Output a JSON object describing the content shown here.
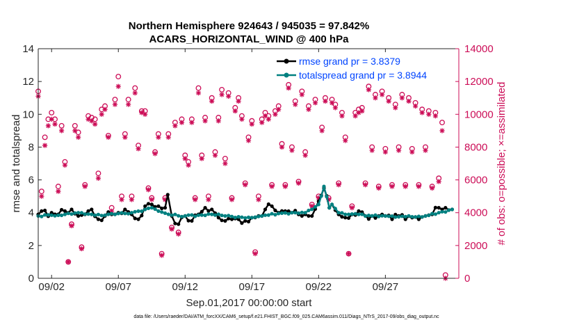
{
  "chart_data": {
    "type": "line",
    "title_line1": "Northern Hemisphere 924643 / 945035 = 97.842%",
    "title_line2": "ACARS_HORIZONTAL_WIND @ 400 hPa",
    "xlabel": "Sep.01,2017 00:00:00 start",
    "ylabel_left": "rmse and totalspread",
    "ylabel_right": "# of obs: o=possible; ×=assimilated",
    "footer": "data file: /Users/raeder/DAI/ATM_forcXX/CAM6_setup/f.e21.FHIST_BGC.f09_025.CAM6assim.011/Diags_NTrS_2017-09/obs_diag_output.nc",
    "xlim": [
      1,
      32.5
    ],
    "ylim_left": [
      0,
      14
    ],
    "ylim_right": [
      0,
      14000
    ],
    "x_ticks": [
      2,
      7,
      12,
      17,
      22,
      27
    ],
    "x_tick_labels": [
      "09/02",
      "09/07",
      "09/12",
      "09/17",
      "09/22",
      "09/27"
    ],
    "y_ticks_left": [
      0,
      2,
      4,
      6,
      8,
      10,
      12,
      14
    ],
    "y_tick_labels_left": [
      "0",
      "2",
      "4",
      "6",
      "8",
      "10",
      "12",
      "14"
    ],
    "y_ticks_right": [
      0,
      2000,
      4000,
      6000,
      8000,
      10000,
      12000,
      14000
    ],
    "y_tick_labels_right": [
      "0",
      "2000",
      "4000",
      "6000",
      "8000",
      "10000",
      "12000",
      "14000"
    ],
    "legend": [
      {
        "name": "rmse grand pr = 3.8379",
        "color": "#000000"
      },
      {
        "name": "totalspread grand pr = 3.8944",
        "color": "#008080"
      }
    ],
    "series": [
      {
        "name": "rmse",
        "axis": "left",
        "color": "#000000",
        "anchors": [
          [
            1,
            3.9
          ],
          [
            2,
            4.0
          ],
          [
            2.5,
            3.9
          ],
          [
            3,
            4.1
          ],
          [
            3.5,
            4.2
          ],
          [
            4,
            3.8
          ],
          [
            4.5,
            3.9
          ],
          [
            5,
            4.2
          ],
          [
            5.5,
            3.6
          ],
          [
            6,
            3.8
          ],
          [
            6.5,
            3.9
          ],
          [
            7,
            4.0
          ],
          [
            7.5,
            4.2
          ],
          [
            8,
            3.9
          ],
          [
            8.5,
            3.6
          ],
          [
            9,
            4.4
          ],
          [
            9.5,
            4.5
          ],
          [
            10,
            4.4
          ],
          [
            10.5,
            4.3
          ],
          [
            10.7,
            5.1
          ],
          [
            11,
            3.8
          ],
          [
            11.5,
            3.3
          ],
          [
            12,
            3.8
          ],
          [
            12.5,
            3.5
          ],
          [
            13,
            3.9
          ],
          [
            13.5,
            4.3
          ],
          [
            14,
            4.2
          ],
          [
            14.5,
            3.7
          ],
          [
            15,
            3.5
          ],
          [
            15.5,
            3.6
          ],
          [
            16,
            3.6
          ],
          [
            16.5,
            3.5
          ],
          [
            17,
            3.7
          ],
          [
            17.5,
            3.8
          ],
          [
            18,
            4.2
          ],
          [
            18.5,
            4.4
          ],
          [
            19,
            4.0
          ],
          [
            19.5,
            4.1
          ],
          [
            20,
            4.0
          ],
          [
            20.5,
            3.9
          ],
          [
            21,
            3.9
          ],
          [
            21.5,
            3.8
          ],
          [
            22,
            4.7
          ],
          [
            22.4,
            5.5
          ],
          [
            22.8,
            4.3
          ],
          [
            23,
            4.5
          ],
          [
            23.5,
            3.9
          ],
          [
            24,
            3.7
          ],
          [
            24.5,
            3.9
          ],
          [
            25,
            4.1
          ],
          [
            25.5,
            3.8
          ],
          [
            26,
            3.8
          ],
          [
            26.5,
            3.8
          ],
          [
            27,
            3.8
          ],
          [
            27.5,
            3.6
          ],
          [
            28,
            3.8
          ],
          [
            28.5,
            3.6
          ],
          [
            29,
            3.7
          ],
          [
            29.5,
            3.6
          ],
          [
            30,
            3.8
          ],
          [
            30.5,
            3.9
          ],
          [
            31,
            4.3
          ],
          [
            31.5,
            4.3
          ],
          [
            32,
            4.2
          ]
        ],
        "wiggle": 0.22
      },
      {
        "name": "totalspread",
        "axis": "left",
        "color": "#008080",
        "anchors": [
          [
            1,
            3.8
          ],
          [
            2,
            3.85
          ],
          [
            3,
            3.9
          ],
          [
            4,
            4.0
          ],
          [
            5,
            3.9
          ],
          [
            6,
            3.85
          ],
          [
            7,
            3.95
          ],
          [
            8,
            4.0
          ],
          [
            9,
            4.2
          ],
          [
            9.5,
            4.3
          ],
          [
            10,
            4.1
          ],
          [
            11,
            3.85
          ],
          [
            12,
            3.8
          ],
          [
            13,
            3.85
          ],
          [
            14,
            3.9
          ],
          [
            15,
            3.8
          ],
          [
            16,
            3.75
          ],
          [
            17,
            3.7
          ],
          [
            18,
            3.85
          ],
          [
            19,
            3.95
          ],
          [
            20,
            4.0
          ],
          [
            21,
            4.0
          ],
          [
            22,
            4.5
          ],
          [
            22.4,
            5.6
          ],
          [
            22.8,
            4.3
          ],
          [
            23,
            4.5
          ],
          [
            23.5,
            4.0
          ],
          [
            24,
            3.9
          ],
          [
            25,
            3.9
          ],
          [
            26,
            3.8
          ],
          [
            27,
            3.8
          ],
          [
            28,
            3.75
          ],
          [
            29,
            3.75
          ],
          [
            30,
            3.8
          ],
          [
            31,
            4.0
          ],
          [
            32,
            4.2
          ]
        ],
        "wiggle": 0.06
      }
    ],
    "obs_possible": [
      [
        1,
        11400
      ],
      [
        1.25,
        5300
      ],
      [
        1.5,
        8600
      ],
      [
        1.75,
        9700
      ],
      [
        2,
        10100
      ],
      [
        2.25,
        9700
      ],
      [
        2.5,
        5600
      ],
      [
        2.75,
        9300
      ],
      [
        3,
        7100
      ],
      [
        3.25,
        1000
      ],
      [
        3.5,
        3300
      ],
      [
        3.75,
        9300
      ],
      [
        4,
        8900
      ],
      [
        4.25,
        1900
      ],
      [
        4.5,
        5700
      ],
      [
        4.75,
        9900
      ],
      [
        5,
        9800
      ],
      [
        5.25,
        9700
      ],
      [
        5.5,
        6400
      ],
      [
        5.75,
        10300
      ],
      [
        6,
        10500
      ],
      [
        6.25,
        8700
      ],
      [
        6.5,
        4300
      ],
      [
        6.75,
        10900
      ],
      [
        7,
        12300
      ],
      [
        7.25,
        5000
      ],
      [
        7.5,
        8800
      ],
      [
        7.75,
        10900
      ],
      [
        8,
        5000
      ],
      [
        8.25,
        11600
      ],
      [
        8.5,
        8100
      ],
      [
        8.75,
        10200
      ],
      [
        9,
        10200
      ],
      [
        9.25,
        5500
      ],
      [
        9.5,
        4900
      ],
      [
        9.75,
        7700
      ],
      [
        10,
        8800
      ],
      [
        10.25,
        1500
      ],
      [
        10.5,
        4900
      ],
      [
        10.75,
        8800
      ],
      [
        11,
        3100
      ],
      [
        11.25,
        9500
      ],
      [
        11.5,
        2800
      ],
      [
        11.75,
        9700
      ],
      [
        12,
        7500
      ],
      [
        12.25,
        7100
      ],
      [
        12.5,
        9700
      ],
      [
        12.75,
        4900
      ],
      [
        13,
        11600
      ],
      [
        13.25,
        7500
      ],
      [
        13.5,
        9800
      ],
      [
        13.75,
        5000
      ],
      [
        14,
        11000
      ],
      [
        14.25,
        7700
      ],
      [
        14.5,
        9800
      ],
      [
        14.75,
        11500
      ],
      [
        15,
        7300
      ],
      [
        15.25,
        11300
      ],
      [
        15.5,
        4900
      ],
      [
        15.75,
        10400
      ],
      [
        16,
        11000
      ],
      [
        16.25,
        9900
      ],
      [
        16.5,
        5800
      ],
      [
        16.75,
        8600
      ],
      [
        17,
        9600
      ],
      [
        17.25,
        1600
      ],
      [
        17.5,
        5000
      ],
      [
        17.75,
        9700
      ],
      [
        18,
        10100
      ],
      [
        18.25,
        9900
      ],
      [
        18.5,
        5700
      ],
      [
        18.75,
        10200
      ],
      [
        19,
        10500
      ],
      [
        19.25,
        8200
      ],
      [
        19.5,
        5700
      ],
      [
        19.75,
        11800
      ],
      [
        20,
        8000
      ],
      [
        20.25,
        10800
      ],
      [
        20.5,
        5900
      ],
      [
        20.75,
        11400
      ],
      [
        21,
        7700
      ],
      [
        21.25,
        10500
      ],
      [
        21.5,
        4500
      ],
      [
        21.75,
        10900
      ],
      [
        22,
        5000
      ],
      [
        22.25,
        9200
      ],
      [
        22.5,
        11000
      ],
      [
        22.75,
        4900
      ],
      [
        23,
        10900
      ],
      [
        23.25,
        10600
      ],
      [
        23.5,
        5800
      ],
      [
        23.75,
        10100
      ],
      [
        24,
        8600
      ],
      [
        24.25,
        1500
      ],
      [
        24.5,
        4400
      ],
      [
        24.75,
        10100
      ],
      [
        25,
        10300
      ],
      [
        25.25,
        10400
      ],
      [
        25.5,
        5800
      ],
      [
        25.75,
        11700
      ],
      [
        26,
        8000
      ],
      [
        26.25,
        11200
      ],
      [
        26.5,
        5600
      ],
      [
        26.75,
        11400
      ],
      [
        27,
        7900
      ],
      [
        27.25,
        11000
      ],
      [
        27.5,
        5700
      ],
      [
        27.75,
        10600
      ],
      [
        28,
        8000
      ],
      [
        28.25,
        11200
      ],
      [
        28.5,
        5700
      ],
      [
        28.75,
        11000
      ],
      [
        29,
        7900
      ],
      [
        29.25,
        10700
      ],
      [
        29.5,
        5700
      ],
      [
        29.75,
        10300
      ],
      [
        30,
        8000
      ],
      [
        30.25,
        10200
      ],
      [
        30.5,
        5600
      ],
      [
        30.75,
        10100
      ],
      [
        31,
        6100
      ],
      [
        31.25,
        9500
      ],
      [
        31.5,
        200
      ]
    ],
    "obs_assimilated": [
      [
        1,
        11100
      ],
      [
        1.25,
        5000
      ],
      [
        1.5,
        8100
      ],
      [
        1.75,
        9300
      ],
      [
        2,
        9700
      ],
      [
        2.25,
        9400
      ],
      [
        2.5,
        5300
      ],
      [
        2.75,
        9000
      ],
      [
        3,
        6900
      ],
      [
        3.25,
        1000
      ],
      [
        3.5,
        3200
      ],
      [
        3.75,
        9000
      ],
      [
        4,
        8600
      ],
      [
        4.25,
        1800
      ],
      [
        4.5,
        5600
      ],
      [
        4.75,
        9700
      ],
      [
        5,
        9600
      ],
      [
        5.25,
        9400
      ],
      [
        5.5,
        6100
      ],
      [
        5.75,
        10000
      ],
      [
        6,
        10300
      ],
      [
        6.25,
        8600
      ],
      [
        6.5,
        4100
      ],
      [
        6.75,
        10600
      ],
      [
        7,
        11700
      ],
      [
        7.25,
        4800
      ],
      [
        7.5,
        8600
      ],
      [
        7.75,
        10600
      ],
      [
        8,
        4800
      ],
      [
        8.25,
        11300
      ],
      [
        8.5,
        7900
      ],
      [
        8.75,
        10100
      ],
      [
        9,
        10000
      ],
      [
        9.25,
        5400
      ],
      [
        9.5,
        4800
      ],
      [
        9.75,
        7600
      ],
      [
        10,
        8600
      ],
      [
        10.25,
        1400
      ],
      [
        10.5,
        4800
      ],
      [
        10.75,
        8600
      ],
      [
        11,
        3000
      ],
      [
        11.25,
        9300
      ],
      [
        11.5,
        2700
      ],
      [
        11.75,
        9500
      ],
      [
        12,
        7300
      ],
      [
        12.25,
        6900
      ],
      [
        12.5,
        9500
      ],
      [
        12.75,
        4800
      ],
      [
        13,
        11300
      ],
      [
        13.25,
        7300
      ],
      [
        13.5,
        9600
      ],
      [
        13.75,
        4800
      ],
      [
        14,
        10800
      ],
      [
        14.25,
        7500
      ],
      [
        14.5,
        9600
      ],
      [
        14.75,
        11200
      ],
      [
        15,
        7000
      ],
      [
        15.25,
        11100
      ],
      [
        15.5,
        4800
      ],
      [
        15.75,
        10200
      ],
      [
        16,
        10800
      ],
      [
        16.25,
        9700
      ],
      [
        16.5,
        5700
      ],
      [
        16.75,
        8400
      ],
      [
        17,
        9400
      ],
      [
        17.25,
        1500
      ],
      [
        17.5,
        4800
      ],
      [
        17.75,
        9500
      ],
      [
        18,
        9900
      ],
      [
        18.25,
        9700
      ],
      [
        18.5,
        5600
      ],
      [
        18.75,
        10000
      ],
      [
        19,
        10300
      ],
      [
        19.25,
        8000
      ],
      [
        19.5,
        5600
      ],
      [
        19.75,
        11600
      ],
      [
        20,
        7800
      ],
      [
        20.25,
        10600
      ],
      [
        20.5,
        5800
      ],
      [
        20.75,
        11200
      ],
      [
        21,
        7500
      ],
      [
        21.25,
        10300
      ],
      [
        21.5,
        4400
      ],
      [
        21.75,
        10700
      ],
      [
        22,
        4900
      ],
      [
        22.25,
        9000
      ],
      [
        22.5,
        10800
      ],
      [
        22.75,
        4800
      ],
      [
        23,
        10700
      ],
      [
        23.25,
        10400
      ],
      [
        23.5,
        5700
      ],
      [
        23.75,
        9900
      ],
      [
        24,
        8400
      ],
      [
        24.25,
        1500
      ],
      [
        24.5,
        4300
      ],
      [
        24.75,
        9900
      ],
      [
        25,
        10100
      ],
      [
        25.25,
        10200
      ],
      [
        25.5,
        5700
      ],
      [
        25.75,
        11500
      ],
      [
        26,
        7800
      ],
      [
        26.25,
        11000
      ],
      [
        26.5,
        5500
      ],
      [
        26.75,
        11200
      ],
      [
        27,
        7700
      ],
      [
        27.25,
        10800
      ],
      [
        27.5,
        5600
      ],
      [
        27.75,
        10400
      ],
      [
        28,
        7800
      ],
      [
        28.25,
        11000
      ],
      [
        28.5,
        5600
      ],
      [
        28.75,
        10800
      ],
      [
        29,
        7700
      ],
      [
        29.25,
        10500
      ],
      [
        29.5,
        5600
      ],
      [
        29.75,
        10100
      ],
      [
        30,
        7800
      ],
      [
        30.25,
        10000
      ],
      [
        30.5,
        5500
      ],
      [
        30.75,
        9900
      ],
      [
        31,
        5900
      ],
      [
        31.25,
        9000
      ],
      [
        31.5,
        0
      ]
    ]
  }
}
